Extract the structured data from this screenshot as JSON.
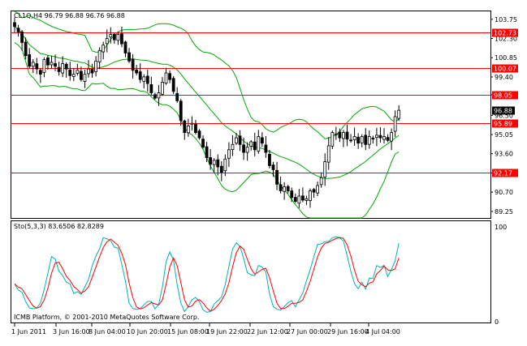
{
  "window": {
    "symbol_info": "CL1Q,H4  96.79 96.88 96.76 96.88",
    "watermark": "ICMB Platform, © 2001-2010 MetaQuotes Software Corp."
  },
  "indicator": {
    "label": "Sto(5,3,3) 83.6506 82.8289",
    "scale_top": "100",
    "scale_bottom": "0"
  },
  "colors": {
    "level_line": "#ff0000",
    "bollinger": "#00aa00",
    "stoch_main": "#00b4b4",
    "stoch_signal": "#ff0000",
    "current_price_bg": "#000000"
  },
  "chart_data": {
    "type": "candlestick",
    "instrument": "CL1Q",
    "timeframe": "H4",
    "price_scale": [
      "103.75",
      "102.30",
      "100.85",
      "99.40",
      "98.05",
      "96.50",
      "95.05",
      "93.60",
      "92.15",
      "90.70",
      "89.25"
    ],
    "price_range": [
      88.75,
      104.35
    ],
    "current_price": "96.88",
    "levels": [
      "102.73",
      "100.07",
      "98.05",
      "95.89",
      "92.17"
    ],
    "x_labels": [
      "1 Jun 2011",
      "3 Jun 16:00",
      "8 Jun 04:00",
      "10 Jun 20:00",
      "15 Jun 08:00",
      "19 Jun 22:00",
      "22 Jun 12:00",
      "27 Jun 00:00",
      "29 Jun 16:00",
      "4 Jul 04:00"
    ],
    "close": [
      103.2,
      102.8,
      102.0,
      101.0,
      100.2,
      100.5,
      100.0,
      99.6,
      100.7,
      100.3,
      100.5,
      100.2,
      99.8,
      100.4,
      100.0,
      99.5,
      99.6,
      99.9,
      99.2,
      99.6,
      100.0,
      99.7,
      100.6,
      101.4,
      101.8,
      102.3,
      102.6,
      102.2,
      102.6,
      101.9,
      101.2,
      100.6,
      99.9,
      99.7,
      99.2,
      99.4,
      98.9,
      98.2,
      97.8,
      98.2,
      99.0,
      99.7,
      99.2,
      98.3,
      97.6,
      96.1,
      95.2,
      95.7,
      95.9,
      95.2,
      94.8,
      94.1,
      93.3,
      92.8,
      93.1,
      92.6,
      92.2,
      93.2,
      93.9,
      94.3,
      94.8,
      94.3,
      93.7,
      94.1,
      94.5,
      93.9,
      94.9,
      94.4,
      93.7,
      92.7,
      92.4,
      91.3,
      90.8,
      91.1,
      90.8,
      90.3,
      90.0,
      90.4,
      90.1,
      90.2,
      90.8,
      90.7,
      91.2,
      91.8,
      93.0,
      94.2,
      95.2,
      95.1,
      94.8,
      95.2,
      94.7,
      94.6,
      94.9,
      94.4,
      94.9,
      94.3,
      94.9,
      94.7,
      95.0,
      94.8,
      94.9,
      94.6,
      95.2,
      96.4,
      96.88
    ],
    "bollinger": {
      "period": 20,
      "deviations": 2
    },
    "stochastic": {
      "k": 5,
      "d": 3,
      "slowing": 3,
      "main": 83.6506,
      "signal": 82.8289,
      "range": [
        0,
        100
      ]
    }
  }
}
